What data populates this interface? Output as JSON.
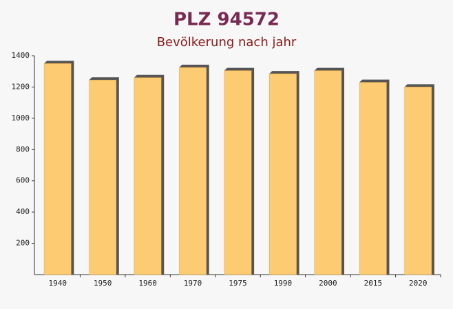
{
  "chart_data": {
    "type": "bar",
    "title": "PLZ 94572",
    "subtitle": "Bevölkerung nach jahr",
    "categories": [
      "1940",
      "1950",
      "1960",
      "1970",
      "1975",
      "1990",
      "2000",
      "2015",
      "2020"
    ],
    "values": [
      1350,
      1245,
      1260,
      1325,
      1305,
      1285,
      1305,
      1230,
      1200
    ],
    "color": "#fdc96b",
    "ylim": [
      0,
      1400
    ],
    "yticks": [
      200,
      400,
      600,
      800,
      1000,
      1200,
      1400
    ]
  }
}
